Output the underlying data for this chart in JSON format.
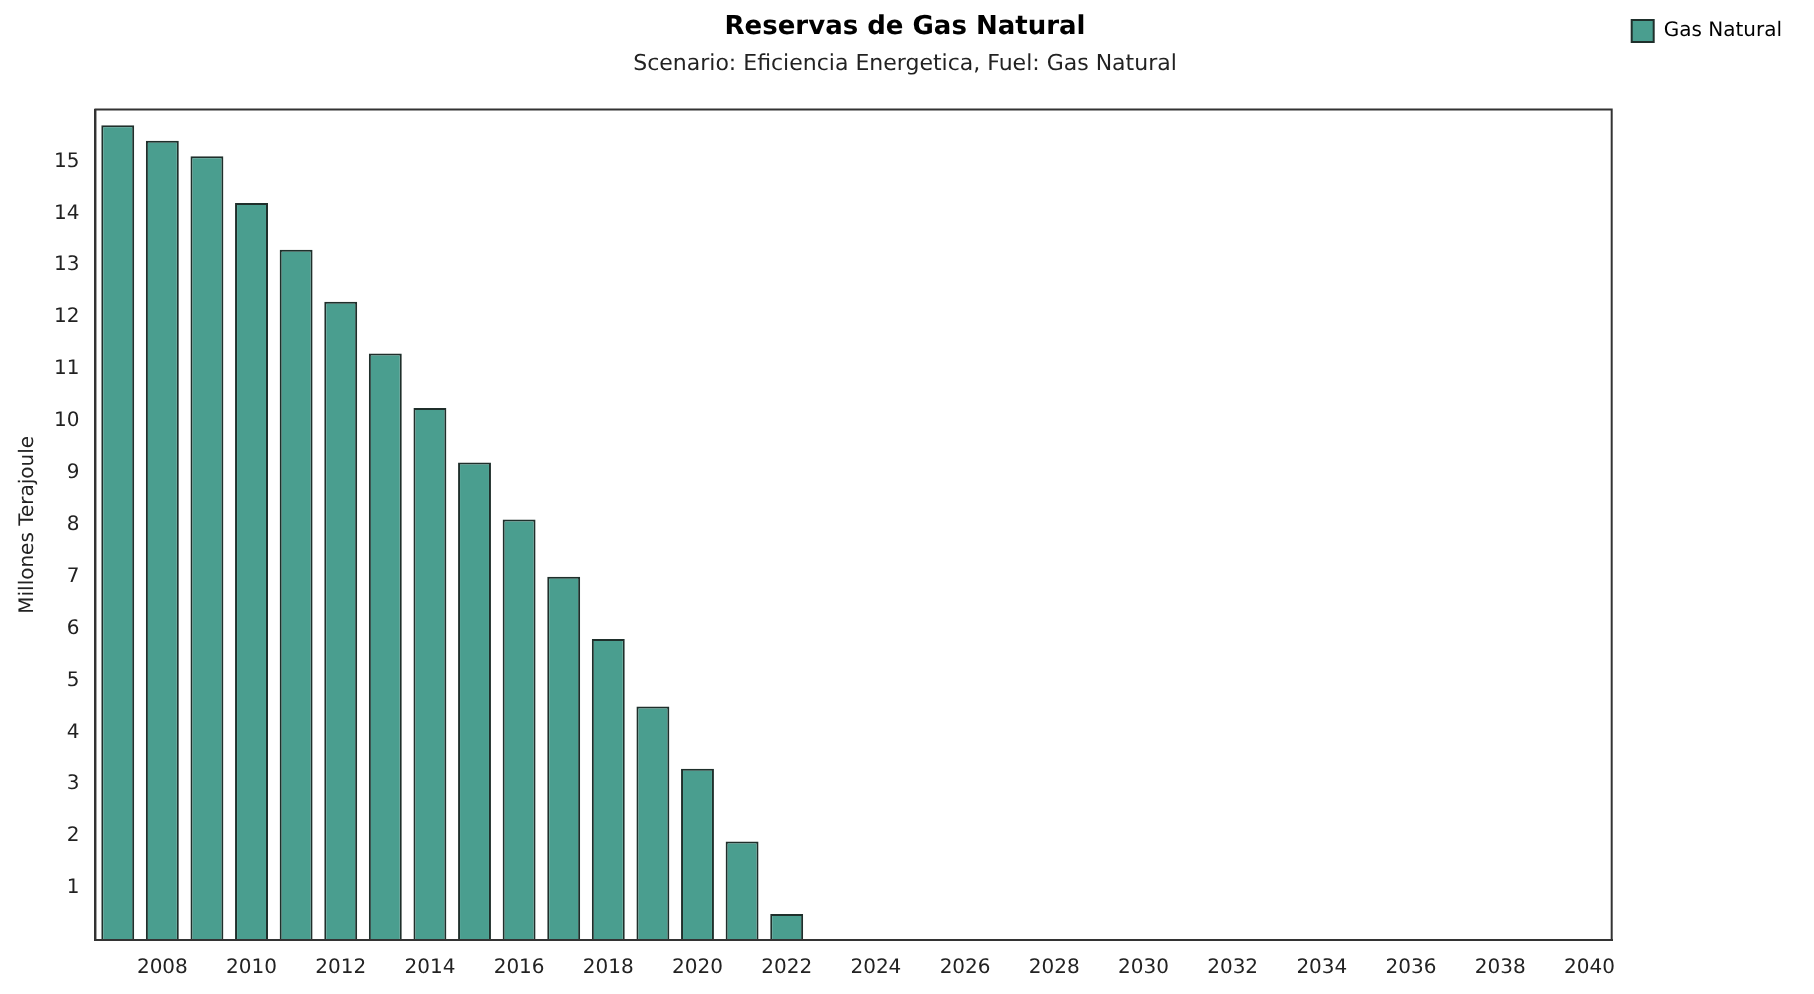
{
  "chart_data": {
    "type": "bar",
    "title": "Reservas de Gas Natural",
    "subtitle": "Scenario: Eficiencia Energetica, Fuel: Gas Natural",
    "ylabel": "Millones Terajoule",
    "categories": [
      null,
      "2008",
      null,
      "2010",
      null,
      "2012",
      null,
      "2014",
      null,
      "2016",
      null,
      "2018",
      null,
      "2020",
      null,
      "2022",
      null,
      "2024",
      null,
      "2026",
      null,
      "2028",
      null,
      "2030",
      null,
      "2032",
      null,
      "2034",
      null,
      "2036",
      null,
      "2038",
      null,
      "2040"
    ],
    "series": [
      {
        "name": "Gas Natural",
        "color": "#4a9e8f",
        "values": [
          15.7,
          15.4,
          15.1,
          14.2,
          13.3,
          12.3,
          11.3,
          10.25,
          9.2,
          8.1,
          7.0,
          5.8,
          4.5,
          3.3,
          1.9,
          0.5,
          0,
          0,
          0,
          0,
          0,
          0,
          0,
          0,
          0,
          0,
          0,
          0,
          0,
          0,
          0,
          0,
          0,
          0
        ]
      }
    ],
    "ylim": [
      0,
      16
    ],
    "yticks": [
      1,
      2,
      3,
      4,
      5,
      6,
      7,
      8,
      9,
      10,
      11,
      12,
      13,
      14,
      15
    ],
    "grid": false,
    "legend": "top right"
  }
}
